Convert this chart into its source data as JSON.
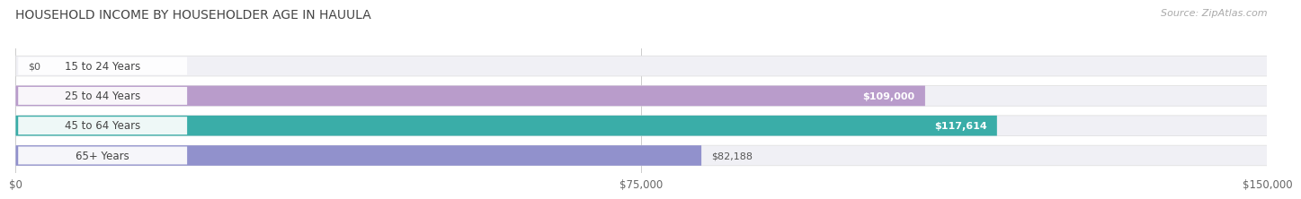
{
  "title": "HOUSEHOLD INCOME BY HOUSEHOLDER AGE IN HAUULA",
  "source": "Source: ZipAtlas.com",
  "categories": [
    "15 to 24 Years",
    "25 to 44 Years",
    "45 to 64 Years",
    "65+ Years"
  ],
  "values": [
    0,
    109000,
    117614,
    82188
  ],
  "bar_colors": [
    "#a8bfe0",
    "#b99ccb",
    "#3aada8",
    "#9191cc"
  ],
  "bar_bg_color": "#ebebf0",
  "value_labels": [
    "$0",
    "$109,000",
    "$117,614",
    "$82,188"
  ],
  "value_inside": [
    false,
    true,
    true,
    false
  ],
  "xmax": 150000,
  "xticks": [
    0,
    75000,
    150000
  ],
  "xtick_labels": [
    "$0",
    "$75,000",
    "$150,000"
  ],
  "title_fontsize": 10,
  "label_fontsize": 8.5,
  "value_fontsize": 8.0,
  "source_fontsize": 8.0,
  "fig_bg_color": "#ffffff",
  "bar_bg_color_outer": "#f0f0f5"
}
